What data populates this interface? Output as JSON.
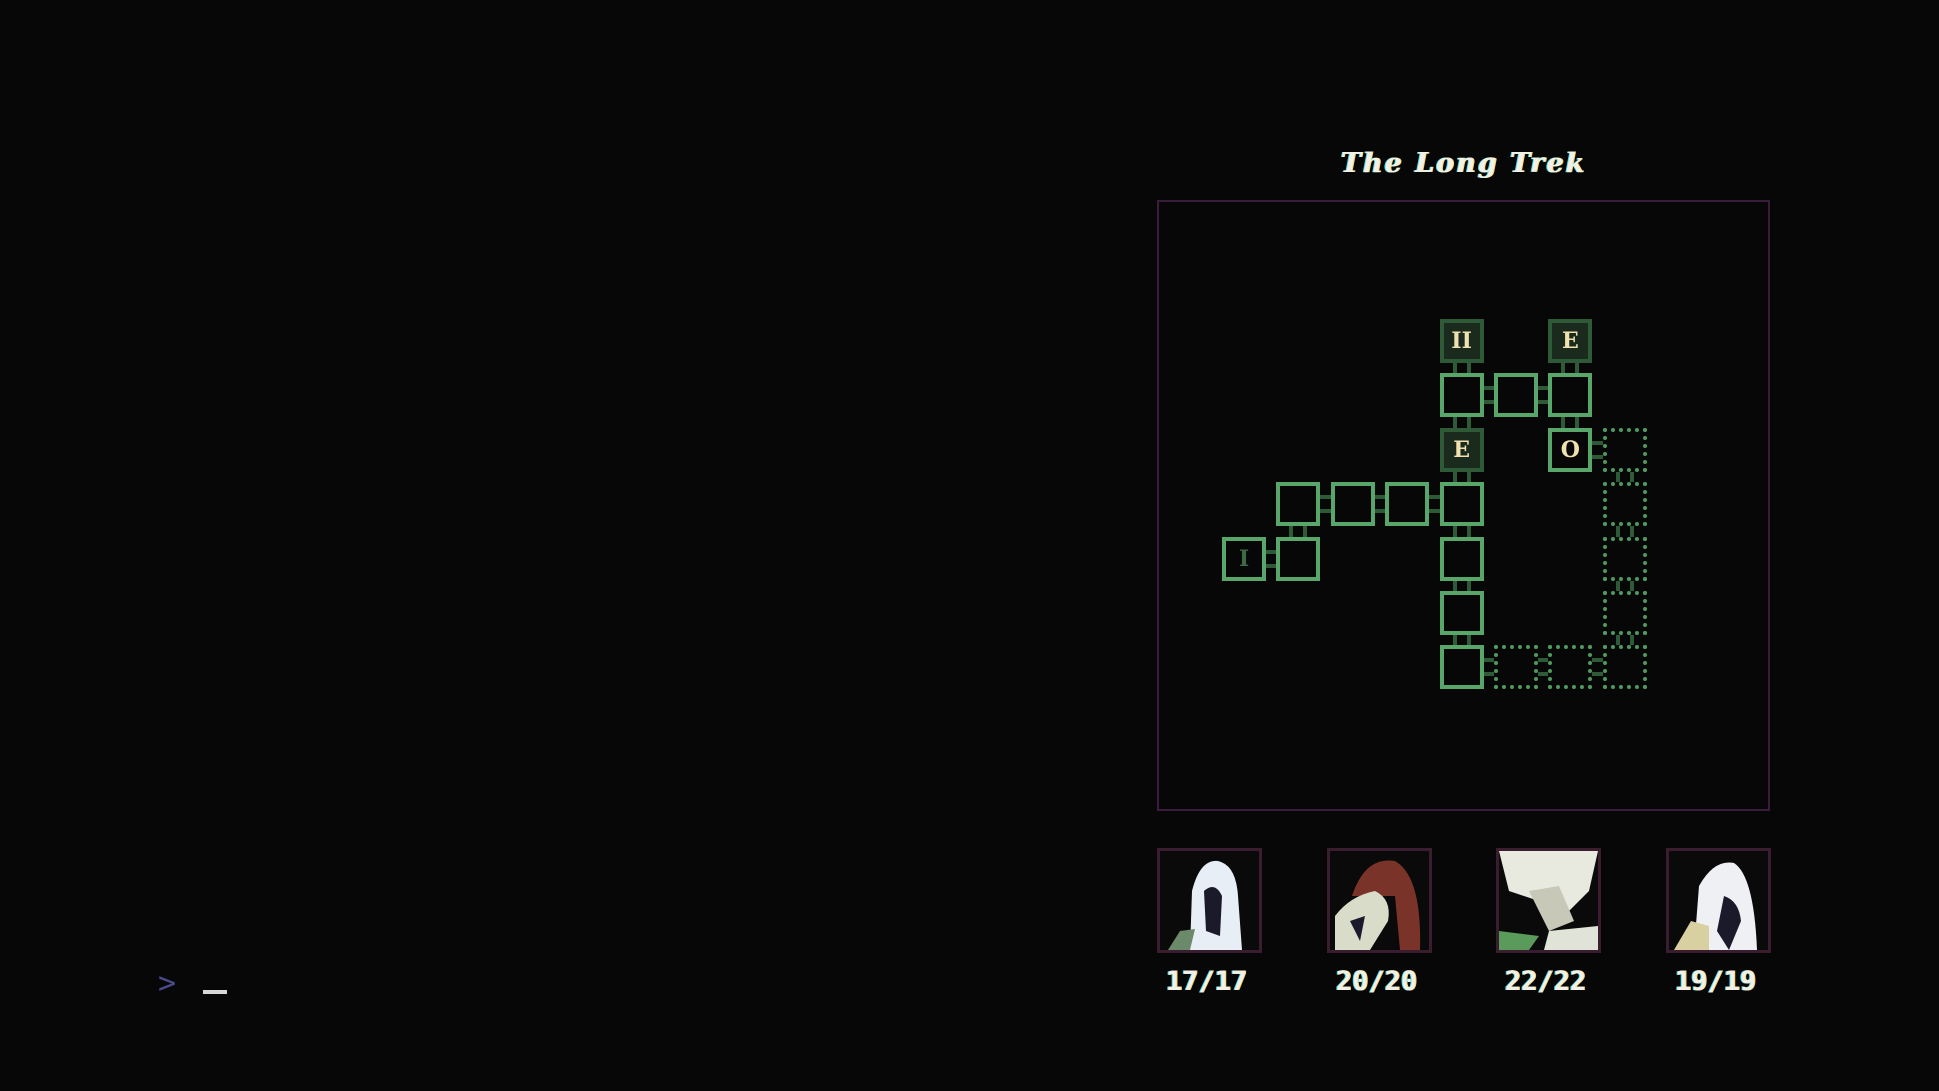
{
  "map": {
    "title": "The Long Trek",
    "rooms": [
      {
        "col": 4,
        "row": 0,
        "type": "special",
        "glyph": "II"
      },
      {
        "col": 6,
        "row": 0,
        "type": "special",
        "glyph": "E"
      },
      {
        "col": 4,
        "row": 1,
        "type": "room"
      },
      {
        "col": 5,
        "row": 1,
        "type": "room"
      },
      {
        "col": 6,
        "row": 1,
        "type": "room"
      },
      {
        "col": 4,
        "row": 2,
        "type": "special",
        "glyph": "E"
      },
      {
        "col": 6,
        "row": 2,
        "type": "bright",
        "glyph": "O"
      },
      {
        "col": 7,
        "row": 2,
        "type": "unexplored"
      },
      {
        "col": 1,
        "row": 3,
        "type": "room"
      },
      {
        "col": 2,
        "row": 3,
        "type": "room"
      },
      {
        "col": 3,
        "row": 3,
        "type": "room"
      },
      {
        "col": 4,
        "row": 3,
        "type": "room"
      },
      {
        "col": 7,
        "row": 3,
        "type": "unexplored"
      },
      {
        "col": 0,
        "row": 4,
        "type": "room",
        "glyph": "I",
        "dim": true
      },
      {
        "col": 1,
        "row": 4,
        "type": "room"
      },
      {
        "col": 4,
        "row": 4,
        "type": "room"
      },
      {
        "col": 7,
        "row": 4,
        "type": "unexplored"
      },
      {
        "col": 4,
        "row": 5,
        "type": "room"
      },
      {
        "col": 7,
        "row": 5,
        "type": "unexplored"
      },
      {
        "col": 4,
        "row": 6,
        "type": "room"
      },
      {
        "col": 5,
        "row": 6,
        "type": "unexplored"
      },
      {
        "col": 6,
        "row": 6,
        "type": "unexplored"
      },
      {
        "col": 7,
        "row": 6,
        "type": "unexplored"
      }
    ],
    "links": [
      [
        4,
        0,
        4,
        1
      ],
      [
        4,
        1,
        4,
        2
      ],
      [
        4,
        2,
        4,
        3
      ],
      [
        4,
        3,
        4,
        4
      ],
      [
        4,
        4,
        4,
        5
      ],
      [
        4,
        5,
        4,
        6
      ],
      [
        6,
        0,
        6,
        1
      ],
      [
        6,
        1,
        6,
        2
      ],
      [
        4,
        1,
        5,
        1
      ],
      [
        5,
        1,
        6,
        1
      ],
      [
        1,
        3,
        2,
        3
      ],
      [
        2,
        3,
        3,
        3
      ],
      [
        3,
        3,
        4,
        3
      ],
      [
        1,
        3,
        1,
        4
      ],
      [
        0,
        4,
        1,
        4
      ],
      [
        6,
        2,
        7,
        2
      ],
      [
        7,
        2,
        7,
        3
      ],
      [
        7,
        3,
        7,
        4
      ],
      [
        7,
        4,
        7,
        5
      ],
      [
        7,
        5,
        7,
        6
      ],
      [
        4,
        6,
        5,
        6
      ],
      [
        5,
        6,
        6,
        6
      ],
      [
        6,
        6,
        7,
        6
      ]
    ],
    "colors": {
      "room": "#58a66a",
      "special_fill": "#1a2a1d",
      "glyph": "#f0e2b0",
      "frame": "#3a1d3d"
    }
  },
  "party": [
    {
      "hp": "17/17",
      "portrait": "pale-hooded-figure"
    },
    {
      "hp": "20/20",
      "portrait": "red-hooded-figure"
    },
    {
      "hp": "22/22",
      "portrait": "wild-haired-figure"
    },
    {
      "hp": "19/19",
      "portrait": "pale-hooded-figure-2"
    }
  ],
  "console": {
    "prompt": ">",
    "cursor": "_"
  }
}
